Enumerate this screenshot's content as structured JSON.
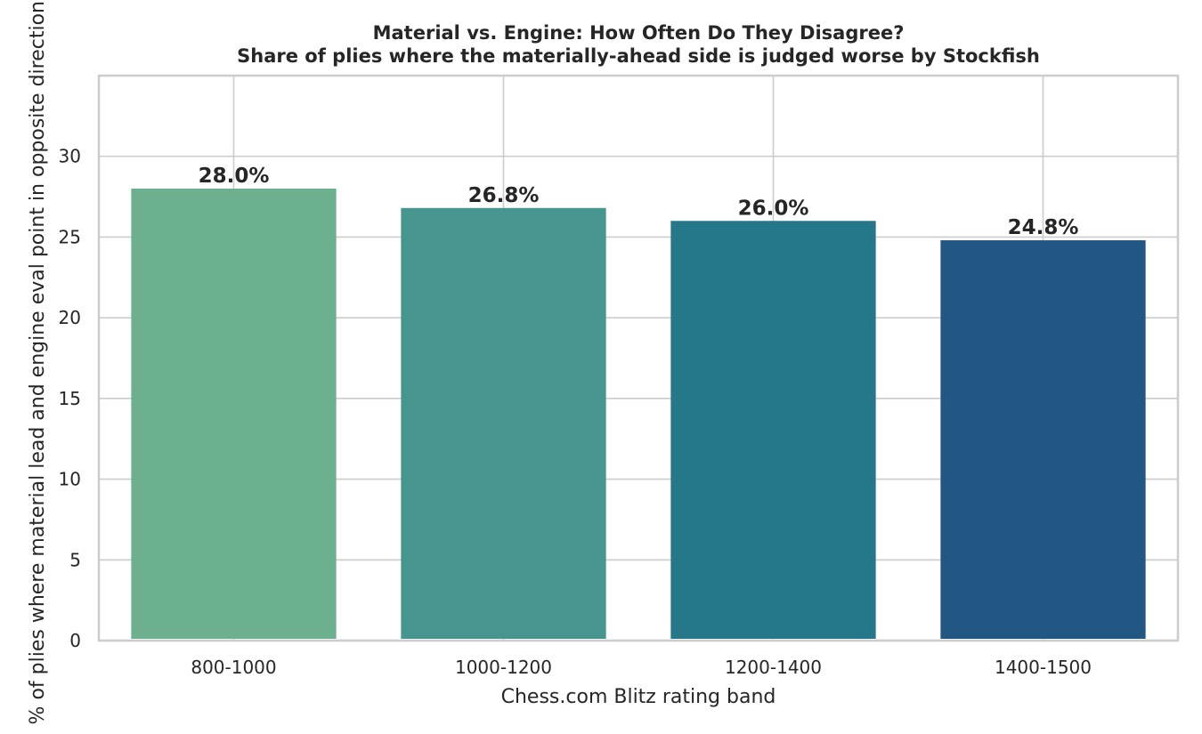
{
  "chart_data": {
    "type": "bar",
    "title": "Material vs. Engine: How Often Do They Disagree?",
    "subtitle": "Share of plies where the materially-ahead side is judged worse by Stockfish",
    "xlabel": "Chess.com Blitz rating band",
    "ylabel": "% of plies where material lead and engine eval point in opposite directions",
    "categories": [
      "800-1000",
      "1000-1200",
      "1200-1400",
      "1400-1500"
    ],
    "values": [
      28.0,
      26.8,
      26.0,
      24.8
    ],
    "value_labels": [
      "28.0%",
      "26.8%",
      "26.0%",
      "24.8%"
    ],
    "colors": [
      "#6db08f",
      "#46958f",
      "#26778a",
      "#225683"
    ],
    "ylim": [
      0,
      35
    ],
    "yticks": [
      0,
      5,
      10,
      15,
      20,
      25,
      30
    ],
    "grid": true,
    "legend": "none"
  }
}
